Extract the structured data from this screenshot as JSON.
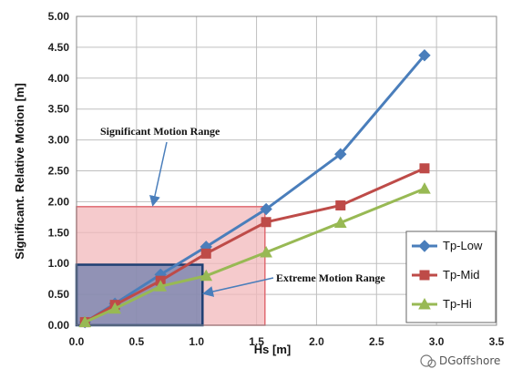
{
  "chart_data": {
    "type": "line",
    "title": "",
    "xlabel": "Hs [m]",
    "ylabel": "Significant. Relative Motion [m]",
    "xlim": [
      0,
      3.5
    ],
    "ylim": [
      0,
      5
    ],
    "x_ticks": [
      "0.0",
      "0.5",
      "1.0",
      "1.5",
      "2.0",
      "2.5",
      "3.0",
      "3.5"
    ],
    "y_ticks": [
      "0.00",
      "0.50",
      "1.00",
      "1.50",
      "2.00",
      "2.50",
      "3.00",
      "3.50",
      "4.00",
      "4.50",
      "5.00"
    ],
    "grid": true,
    "legend_position": "right",
    "series": [
      {
        "name": "Tp-Low",
        "color": "#4a7ebb",
        "marker": "diamond",
        "x": [
          0.07,
          0.32,
          0.7,
          1.08,
          1.58,
          2.2,
          2.9
        ],
        "y": [
          0.05,
          0.35,
          0.82,
          1.27,
          1.88,
          2.77,
          4.37
        ]
      },
      {
        "name": "Tp-Mid",
        "color": "#be4b48",
        "marker": "square",
        "x": [
          0.07,
          0.32,
          0.7,
          1.08,
          1.58,
          2.2,
          2.9
        ],
        "y": [
          0.05,
          0.33,
          0.72,
          1.16,
          1.67,
          1.94,
          2.54
        ]
      },
      {
        "name": "Tp-Hi",
        "color": "#98b954",
        "marker": "triangle",
        "x": [
          0.07,
          0.32,
          0.7,
          1.08,
          1.58,
          2.2,
          2.9
        ],
        "y": [
          0.05,
          0.27,
          0.63,
          0.8,
          1.18,
          1.66,
          2.21
        ]
      }
    ],
    "regions": [
      {
        "label": "Significant Motion Range",
        "x": [
          0,
          1.57
        ],
        "y": [
          0,
          1.92
        ],
        "fill": "#f2b8bb",
        "stroke": "#e06b72"
      },
      {
        "label": "Extreme Motion Range",
        "x": [
          0,
          1.05
        ],
        "y": [
          0,
          0.98
        ],
        "fill": "#6f7fae",
        "stroke": "#1f3f73"
      }
    ]
  },
  "annotations": {
    "significant": "Significant Motion Range",
    "extreme": "Extreme Motion Range"
  },
  "watermark": "DGoffshore"
}
